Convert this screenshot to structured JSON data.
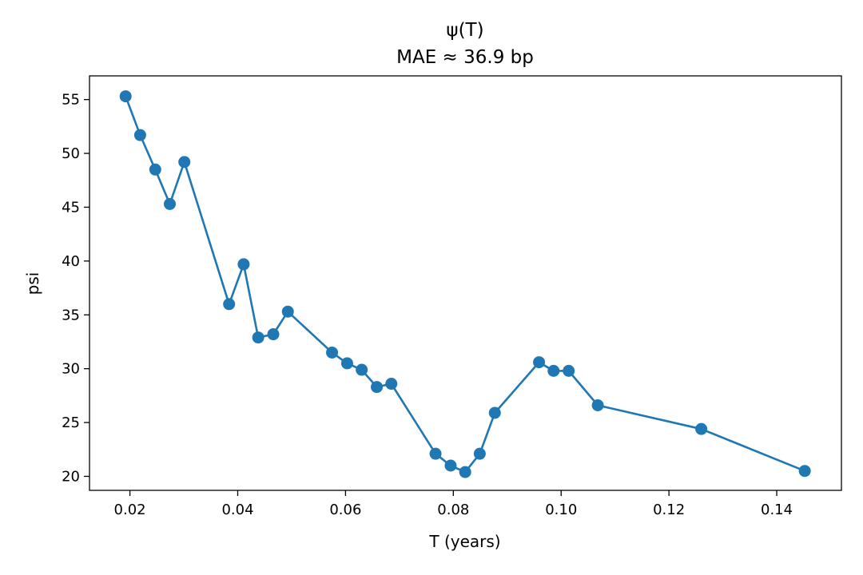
{
  "chart_data": {
    "type": "line",
    "title": "ψ(T)",
    "subtitle": "MAE ≈ 36.9 bp",
    "xlabel": "T (years)",
    "ylabel": "psi",
    "xlim": [
      0.0125,
      0.152
    ],
    "ylim": [
      18.7,
      57.2
    ],
    "xticks": [
      0.02,
      0.04,
      0.06,
      0.08,
      0.1,
      0.12,
      0.14
    ],
    "xtick_labels": [
      "0.02",
      "0.04",
      "0.06",
      "0.08",
      "0.10",
      "0.12",
      "0.14"
    ],
    "yticks": [
      20,
      25,
      30,
      35,
      40,
      45,
      50,
      55
    ],
    "ytick_labels": [
      "20",
      "25",
      "30",
      "35",
      "40",
      "45",
      "50",
      "55"
    ],
    "grid": false,
    "markers": true,
    "series": [
      {
        "color": "#1f77b4",
        "points": [
          {
            "x": 0.0192,
            "y": 55.3
          },
          {
            "x": 0.0219,
            "y": 51.7
          },
          {
            "x": 0.0247,
            "y": 48.5
          },
          {
            "x": 0.0274,
            "y": 45.3
          },
          {
            "x": 0.0301,
            "y": 49.2
          },
          {
            "x": 0.0384,
            "y": 36.0
          },
          {
            "x": 0.0411,
            "y": 39.7
          },
          {
            "x": 0.0438,
            "y": 32.9
          },
          {
            "x": 0.0466,
            "y": 33.2
          },
          {
            "x": 0.0493,
            "y": 35.3
          },
          {
            "x": 0.0575,
            "y": 31.5
          },
          {
            "x": 0.0603,
            "y": 30.5
          },
          {
            "x": 0.063,
            "y": 29.9
          },
          {
            "x": 0.0658,
            "y": 28.3
          },
          {
            "x": 0.0685,
            "y": 28.6
          },
          {
            "x": 0.0767,
            "y": 22.1
          },
          {
            "x": 0.0795,
            "y": 21.0
          },
          {
            "x": 0.0822,
            "y": 20.4
          },
          {
            "x": 0.0849,
            "y": 22.1
          },
          {
            "x": 0.0877,
            "y": 25.9
          },
          {
            "x": 0.0959,
            "y": 30.6
          },
          {
            "x": 0.0986,
            "y": 29.8
          },
          {
            "x": 0.1014,
            "y": 29.8
          },
          {
            "x": 0.1068,
            "y": 26.6
          },
          {
            "x": 0.126,
            "y": 24.4
          },
          {
            "x": 0.1452,
            "y": 20.5
          }
        ]
      }
    ]
  }
}
